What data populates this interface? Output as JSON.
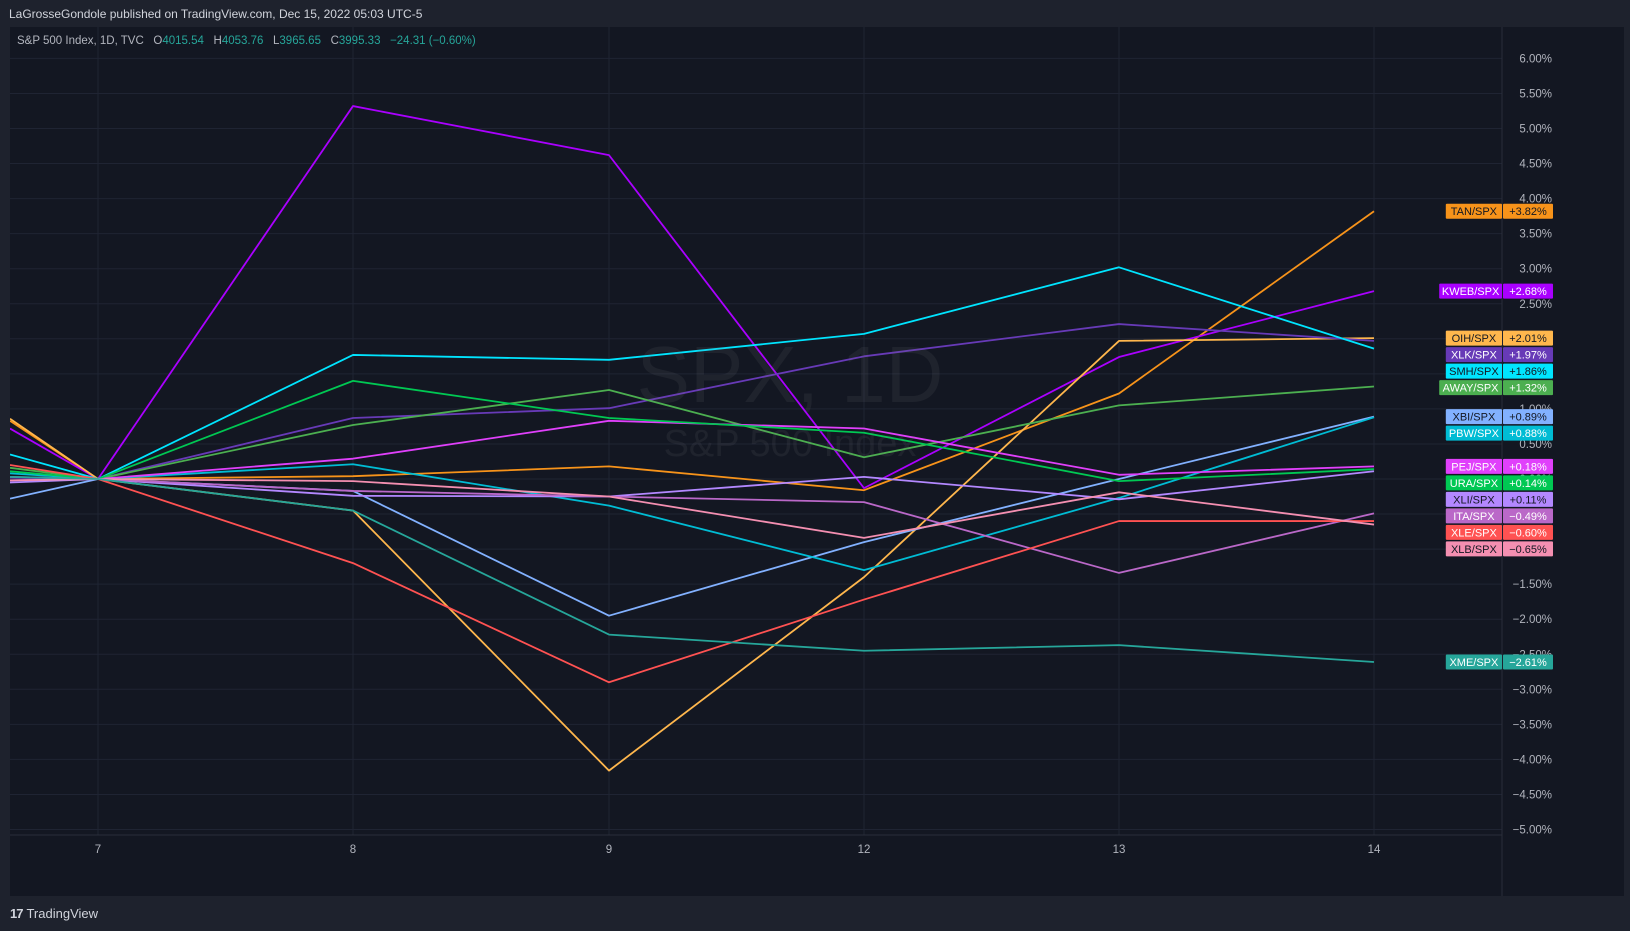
{
  "header": {
    "publisher_text": "LaGrosseGondole published on TradingView.com, Dec 15, 2022 05:03 UTC-5"
  },
  "symbol": {
    "name": "S&P 500 Index, 1D, TVC",
    "o_label": "O",
    "o_value": "4015.54",
    "h_label": "H",
    "h_value": "4053.76",
    "l_label": "L",
    "l_value": "3965.65",
    "c_label": "C",
    "c_value": "3995.33",
    "change": "−24.31 (−0.60%)"
  },
  "watermark": {
    "title": "SPX, 1D",
    "subtitle": "S&P 500 Index"
  },
  "footer": {
    "logo_mark": "17",
    "logo_text": "TradingView"
  },
  "colors": {
    "background": "#131722",
    "grid": "#1f2433",
    "axis_text": "#b2b5be",
    "positive": "#26a69a"
  },
  "chart_data": {
    "type": "line",
    "x": [
      "7",
      "8",
      "9",
      "12",
      "13",
      "14"
    ],
    "y_ticks": [
      "6.00%",
      "5.50%",
      "5.00%",
      "4.50%",
      "4.00%",
      "3.50%",
      "3.00%",
      "2.50%",
      "2.00%",
      "1.50%",
      "1.00%",
      "0.50%",
      "0.00%",
      "−0.50%",
      "−1.00%",
      "−1.50%",
      "−2.00%",
      "−2.50%",
      "−3.00%",
      "−3.50%",
      "−4.00%",
      "−4.50%",
      "−5.00%"
    ],
    "ylim": [
      -5.0,
      6.0
    ],
    "xlim": [
      7,
      14
    ],
    "grid": true,
    "series": [
      {
        "name": "TAN/SPX",
        "label": "+3.82%",
        "color": "#f7931a",
        "left": [
          0.2,
          0.83
        ],
        "values": [
          0,
          0.04,
          0.18,
          -0.16,
          1.22,
          3.82
        ]
      },
      {
        "name": "KWEB/SPX",
        "label": "+2.68%",
        "color": "#aa00ff",
        "left": [
          0.2,
          0.72
        ],
        "values": [
          0,
          5.32,
          4.62,
          -0.13,
          1.74,
          2.68
        ]
      },
      {
        "name": "OIH/SPX",
        "label": "+2.01%",
        "color": "#ffb74d",
        "left": [
          0.2,
          0.86
        ],
        "values": [
          0,
          -0.45,
          -4.16,
          -1.4,
          1.97,
          2.01
        ]
      },
      {
        "name": "XLK/SPX",
        "label": "+1.97%",
        "color": "#673ab7",
        "left": [
          0.2,
          0.02
        ],
        "values": [
          0,
          0.87,
          1.01,
          1.75,
          2.21,
          1.97
        ]
      },
      {
        "name": "SMH/SPX",
        "label": "+1.86%",
        "color": "#00e5ff",
        "left": [
          0.2,
          0.35
        ],
        "values": [
          0,
          1.77,
          1.7,
          2.07,
          3.02,
          1.86
        ]
      },
      {
        "name": "AWAY/SPX",
        "label": "+1.32%",
        "color": "#4caf50",
        "left": [
          0.2,
          0.16
        ],
        "values": [
          0,
          0.77,
          1.27,
          0.31,
          1.05,
          1.32
        ]
      },
      {
        "name": "XBI/SPX",
        "label": "+0.89%",
        "color": "#82b1ff",
        "left": [
          0.2,
          -0.28
        ],
        "values": [
          0,
          -0.17,
          -1.95,
          -0.9,
          0.0,
          0.89
        ]
      },
      {
        "name": "PBW/SPX",
        "label": "+0.88%",
        "color": "#00bcd4",
        "left": [
          0.2,
          0.08
        ],
        "values": [
          0,
          0.21,
          -0.38,
          -1.3,
          -0.27,
          0.88
        ]
      },
      {
        "name": "PEJ/SPX",
        "label": "+0.18%",
        "color": "#e040fb",
        "left": [
          0.2,
          -0.02
        ],
        "values": [
          0,
          0.29,
          0.83,
          0.72,
          0.06,
          0.18
        ]
      },
      {
        "name": "URA/SPX",
        "label": "+0.14%",
        "color": "#00c853",
        "left": [
          0.2,
          0.11
        ],
        "values": [
          0,
          1.4,
          0.87,
          0.66,
          -0.03,
          0.14
        ]
      },
      {
        "name": "XLI/SPX",
        "label": "+0.11%",
        "color": "#b388ff",
        "left": [
          0.2,
          -0.05
        ],
        "values": [
          0,
          -0.24,
          -0.25,
          0.03,
          -0.29,
          0.11
        ]
      },
      {
        "name": "ITA/SPX",
        "label": "−0.49%",
        "color": "#ba68c8",
        "left": [
          0.2,
          0.03
        ],
        "values": [
          0,
          -0.17,
          -0.25,
          -0.33,
          -1.34,
          -0.49
        ]
      },
      {
        "name": "XLE/SPX",
        "label": "−0.60%",
        "color": "#ff5252",
        "left": [
          0.2,
          0.2
        ],
        "values": [
          0,
          -1.2,
          -2.9,
          -1.72,
          -0.6,
          -0.6
        ]
      },
      {
        "name": "XLB/SPX",
        "label": "−0.65%",
        "color": "#f48fb1",
        "left": [
          0.2,
          -0.02
        ],
        "values": [
          0,
          -0.03,
          -0.25,
          -0.84,
          -0.19,
          -0.65
        ]
      },
      {
        "name": "XME/SPX",
        "label": "−2.61%",
        "color": "#26a69a",
        "left": [
          0.2,
          0.03
        ],
        "values": [
          0,
          -0.45,
          -2.22,
          -2.45,
          -2.37,
          -2.61
        ]
      }
    ]
  }
}
